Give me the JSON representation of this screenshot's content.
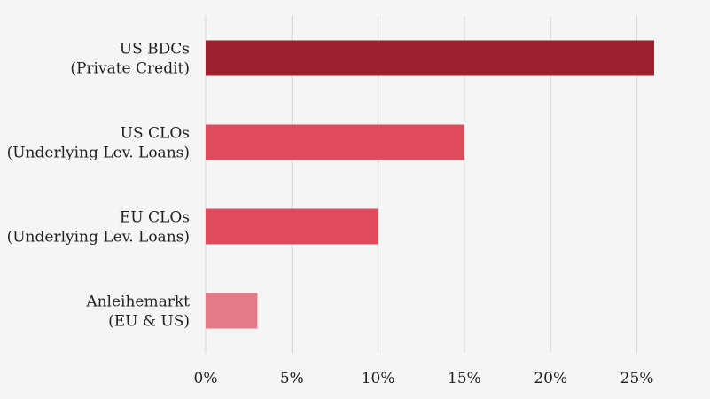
{
  "chart_data": {
    "type": "bar",
    "orientation": "horizontal",
    "title": "",
    "xlabel": "",
    "ylabel": "",
    "categories": [
      [
        "US BDCs",
        "(Private Credit)"
      ],
      [
        "US CLOs",
        "(Underlying Lev. Loans)"
      ],
      [
        "EU CLOs",
        "(Underlying Lev. Loans)"
      ],
      [
        "Anleihemarkt",
        "(EU & US)"
      ]
    ],
    "values": [
      26,
      15,
      10,
      3
    ],
    "value_unit": "%",
    "colors": [
      "#9c1f2e",
      "#df4b5c",
      "#df4b5c",
      "#e57a87"
    ],
    "xlim": [
      0,
      26
    ],
    "xticks": [
      0,
      5,
      10,
      15,
      20,
      25
    ],
    "xtick_labels": [
      "0%",
      "5%",
      "10%",
      "15%",
      "20%",
      "25%"
    ],
    "grid": "vertical",
    "legend": "none"
  }
}
